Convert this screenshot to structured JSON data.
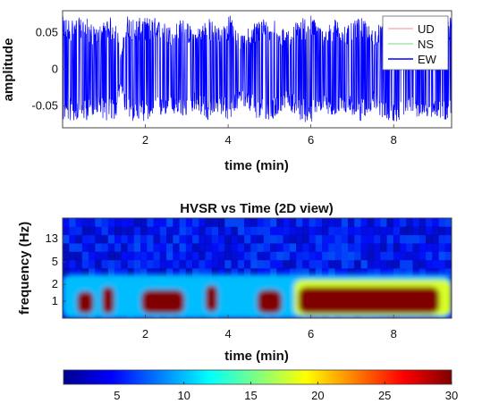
{
  "chart_data": [
    {
      "type": "line",
      "xlabel": "time (min)",
      "ylabel": "amplitude",
      "xlim": [
        0,
        9.4
      ],
      "ylim": [
        -0.08,
        0.08
      ],
      "xticks": [
        2,
        4,
        6,
        8
      ],
      "xtick_labels": [
        "2",
        "4",
        "6",
        "8"
      ],
      "yticks": [
        0.05,
        0,
        -0.05
      ],
      "ytick_labels": [
        "0.05",
        "0",
        "-0.05"
      ],
      "legend_position": "top-right",
      "series": [
        {
          "name": "UD",
          "color": "#ffb3b3"
        },
        {
          "name": "NS",
          "color": "#a6e6a6"
        },
        {
          "name": "EW",
          "color": "#0000ff"
        }
      ],
      "envelope": {
        "x": [
          0,
          0.6,
          0.8,
          1.1,
          1.3,
          1.4,
          1.55,
          1.75,
          2.2,
          2.6,
          2.9,
          3.2,
          3.5,
          3.8,
          4.05,
          4.3,
          4.7,
          5.1,
          5.4,
          5.7,
          6.0,
          6.3,
          6.6,
          6.9,
          7.2,
          7.5,
          7.8,
          8.1,
          8.4,
          8.7,
          9.0,
          9.4
        ],
        "max": [
          0.072,
          0.07,
          0.055,
          0.072,
          0.07,
          0.018,
          0.075,
          0.07,
          0.072,
          0.06,
          0.07,
          0.055,
          0.072,
          0.058,
          0.075,
          0.045,
          0.07,
          0.072,
          0.05,
          0.07,
          0.075,
          0.055,
          0.07,
          0.06,
          0.072,
          0.055,
          0.07,
          0.072,
          0.06,
          0.07,
          0.065,
          0.072
        ],
        "min": [
          -0.072,
          -0.07,
          -0.06,
          -0.072,
          -0.07,
          -0.02,
          -0.075,
          -0.07,
          -0.072,
          -0.06,
          -0.07,
          -0.055,
          -0.072,
          -0.06,
          -0.075,
          -0.045,
          -0.07,
          -0.072,
          -0.05,
          -0.07,
          -0.075,
          -0.055,
          -0.07,
          -0.06,
          -0.072,
          -0.055,
          -0.07,
          -0.072,
          -0.06,
          -0.07,
          -0.065,
          -0.072
        ]
      }
    },
    {
      "type": "heatmap",
      "title": "HVSR vs Time (2D view)",
      "xlabel": "time (min)",
      "ylabel": "frequency (Hz)",
      "xlim": [
        0,
        9.4
      ],
      "xticks": [
        2,
        4,
        6,
        8
      ],
      "xtick_labels": [
        "2",
        "4",
        "6",
        "8"
      ],
      "yticks": [
        13,
        5,
        2,
        1
      ],
      "ytick_labels": [
        "13",
        "5",
        "2",
        "1"
      ],
      "ylim_hz": [
        0.5,
        30
      ],
      "colormap": "jet",
      "clim": [
        1,
        30
      ],
      "colorbar_ticks": [
        5,
        10,
        15,
        20,
        25,
        30
      ],
      "colorbar_tick_labels": [
        "5",
        "10",
        "15",
        "20",
        "25",
        "30"
      ],
      "background_value": 4,
      "high_amplitude_regions": [
        {
          "t_start": 0.35,
          "t_end": 0.75,
          "f_low": 0.6,
          "f_high": 1.5,
          "value": 30
        },
        {
          "t_start": 0.95,
          "t_end": 1.25,
          "f_low": 0.6,
          "f_high": 1.8,
          "value": 30
        },
        {
          "t_start": 1.9,
          "t_end": 2.95,
          "f_low": 0.6,
          "f_high": 1.6,
          "value": 30
        },
        {
          "t_start": 3.45,
          "t_end": 3.75,
          "f_low": 0.65,
          "f_high": 1.9,
          "value": 30
        },
        {
          "t_start": 4.7,
          "t_end": 5.3,
          "f_low": 0.6,
          "f_high": 1.6,
          "value": 30
        },
        {
          "t_start": 5.7,
          "t_end": 9.1,
          "f_low": 0.6,
          "f_high": 1.8,
          "value": 30
        },
        {
          "t_start": 5.6,
          "t_end": 9.4,
          "f_low": 0.55,
          "f_high": 2.4,
          "value": 18
        },
        {
          "t_start": 0.0,
          "t_end": 9.4,
          "f_low": 0.5,
          "f_high": 3.0,
          "value": 10
        }
      ]
    }
  ]
}
